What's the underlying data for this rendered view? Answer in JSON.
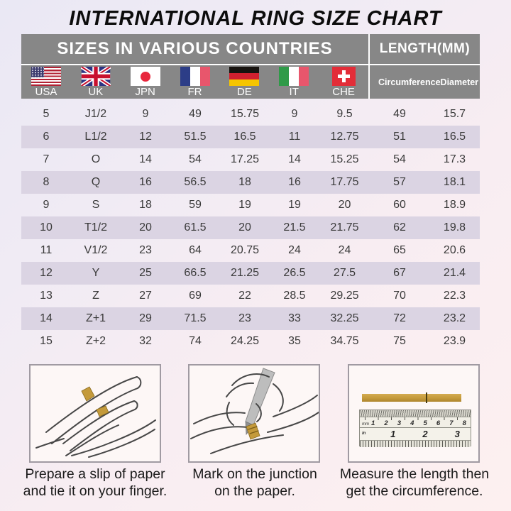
{
  "title": "INTERNATIONAL RING SIZE CHART",
  "table": {
    "header_countries": "SIZES IN VARIOUS COUNTRIES",
    "header_length": "LENGTH(MM)",
    "length_columns": [
      "Circumference",
      "Diameter"
    ],
    "countries": [
      {
        "code": "USA",
        "flag": "United States flag"
      },
      {
        "code": "UK",
        "flag": "United Kingdom flag"
      },
      {
        "code": "JPN",
        "flag": "Japan flag"
      },
      {
        "code": "FR",
        "flag": "France flag"
      },
      {
        "code": "DE",
        "flag": "Germany flag"
      },
      {
        "code": "IT",
        "flag": "Italy flag"
      },
      {
        "code": "CHE",
        "flag": "Switzerland flag"
      }
    ],
    "rows": [
      [
        "5",
        "J1/2",
        "9",
        "49",
        "15.75",
        "9",
        "9.5",
        "49",
        "15.7"
      ],
      [
        "6",
        "L1/2",
        "12",
        "51.5",
        "16.5",
        "11",
        "12.75",
        "51",
        "16.5"
      ],
      [
        "7",
        "O",
        "14",
        "54",
        "17.25",
        "14",
        "15.25",
        "54",
        "17.3"
      ],
      [
        "8",
        "Q",
        "16",
        "56.5",
        "18",
        "16",
        "17.75",
        "57",
        "18.1"
      ],
      [
        "9",
        "S",
        "18",
        "59",
        "19",
        "19",
        "20",
        "60",
        "18.9"
      ],
      [
        "10",
        "T1/2",
        "20",
        "61.5",
        "20",
        "21.5",
        "21.75",
        "62",
        "19.8"
      ],
      [
        "11",
        "V1/2",
        "23",
        "64",
        "20.75",
        "24",
        "24",
        "65",
        "20.6"
      ],
      [
        "12",
        "Y",
        "25",
        "66.5",
        "21.25",
        "26.5",
        "27.5",
        "67",
        "21.4"
      ],
      [
        "13",
        "Z",
        "27",
        "69",
        "22",
        "28.5",
        "29.25",
        "70",
        "22.3"
      ],
      [
        "14",
        "Z+1",
        "29",
        "71.5",
        "23",
        "33",
        "32.25",
        "72",
        "23.2"
      ],
      [
        "15",
        "Z+2",
        "32",
        "74",
        "24.25",
        "35",
        "34.75",
        "75",
        "23.9"
      ]
    ]
  },
  "instructions": [
    {
      "line1": "Prepare a slip of paper",
      "line2": "and tie it on your finger."
    },
    {
      "line1": "Mark on the junction",
      "line2": "on the paper."
    },
    {
      "line1": "Measure the length then",
      "line2": "get the circumference."
    }
  ],
  "ruler": {
    "cm_numbers": [
      "1",
      "2",
      "3",
      "4",
      "5",
      "6",
      "7",
      "8"
    ],
    "inch_numbers": [
      "1",
      "2",
      "3"
    ],
    "unit_top": "mm",
    "unit_bottom": "in"
  },
  "colors": {
    "header_gray": "#878787",
    "row_stripe": "#dbd4e3",
    "paper_gold": "#c49a3b",
    "accent_text": "#ffffff"
  }
}
